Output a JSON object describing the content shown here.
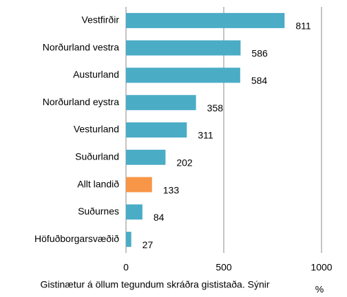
{
  "chart_data": {
    "type": "hbar",
    "categories": [
      "Vestfirðir",
      "Norðurland vestra",
      "Austurland",
      "Norðurland eystra",
      "Vesturland",
      "Suðurland",
      "Allt landið",
      "Suðurnes",
      "Höfuðborgarsvæðið"
    ],
    "values": [
      811,
      586,
      584,
      358,
      311,
      202,
      133,
      84,
      27
    ],
    "colors": [
      "#4bacc6",
      "#4bacc6",
      "#4bacc6",
      "#4bacc6",
      "#4bacc6",
      "#4bacc6",
      "#f79646",
      "#4bacc6",
      "#4bacc6"
    ],
    "xlim": [
      0,
      1000
    ],
    "xticks": [
      0,
      500,
      1000
    ],
    "grid": true,
    "xlabel": "Gistinætur á öllum tegundum skráðra gististaða. Sýnir",
    "x_unit": "%"
  }
}
